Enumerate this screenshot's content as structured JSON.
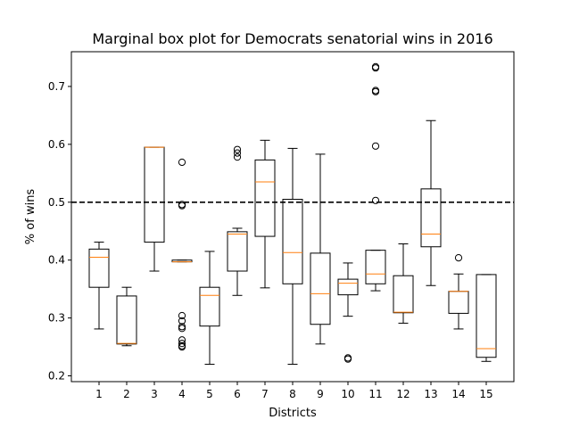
{
  "chart_data": {
    "type": "box",
    "title": "Marginal box plot for Democrats senatorial wins in 2016",
    "xlabel": "Districts",
    "ylabel": "% of wins",
    "ylim": [
      0.19,
      0.76
    ],
    "yticks": [
      0.2,
      0.3,
      0.4,
      0.5,
      0.6,
      0.7
    ],
    "ytick_labels": [
      "0.2",
      "0.3",
      "0.4",
      "0.5",
      "0.6",
      "0.7"
    ],
    "categories": [
      "1",
      "2",
      "3",
      "4",
      "5",
      "6",
      "7",
      "8",
      "9",
      "10",
      "11",
      "12",
      "13",
      "14",
      "15"
    ],
    "reference_line": {
      "y": 0.5,
      "style": "dashed",
      "color": "#000000"
    },
    "colors": {
      "box": "#000000",
      "median": "#ff7f0e",
      "flier": "#000000"
    },
    "boxes": [
      {
        "district": "1",
        "whislo": 0.281,
        "q1": 0.353,
        "med": 0.405,
        "q3": 0.419,
        "whishi": 0.431,
        "fliers": []
      },
      {
        "district": "2",
        "whislo": 0.252,
        "q1": 0.255,
        "med": 0.256,
        "q3": 0.338,
        "whishi": 0.353,
        "fliers": []
      },
      {
        "district": "3",
        "whislo": 0.381,
        "q1": 0.431,
        "med": 0.595,
        "q3": 0.595,
        "whishi": 0.595,
        "fliers": []
      },
      {
        "district": "4",
        "whislo": 0.397,
        "q1": 0.397,
        "med": 0.397,
        "q3": 0.4,
        "whishi": 0.4,
        "fliers": [
          0.569,
          0.496,
          0.494,
          0.304,
          0.295,
          0.285,
          0.282,
          0.262,
          0.256,
          0.252,
          0.25
        ]
      },
      {
        "district": "5",
        "whislo": 0.22,
        "q1": 0.286,
        "med": 0.339,
        "q3": 0.353,
        "whishi": 0.415,
        "fliers": []
      },
      {
        "district": "6",
        "whislo": 0.339,
        "q1": 0.381,
        "med": 0.445,
        "q3": 0.449,
        "whishi": 0.455,
        "fliers": [
          0.591,
          0.585,
          0.578
        ]
      },
      {
        "district": "7",
        "whislo": 0.352,
        "q1": 0.441,
        "med": 0.535,
        "q3": 0.573,
        "whishi": 0.607,
        "fliers": []
      },
      {
        "district": "8",
        "whislo": 0.22,
        "q1": 0.359,
        "med": 0.413,
        "q3": 0.505,
        "whishi": 0.593,
        "fliers": []
      },
      {
        "district": "9",
        "whislo": 0.255,
        "q1": 0.289,
        "med": 0.342,
        "q3": 0.412,
        "whishi": 0.583,
        "fliers": []
      },
      {
        "district": "10",
        "whislo": 0.303,
        "q1": 0.34,
        "med": 0.36,
        "q3": 0.367,
        "whishi": 0.395,
        "fliers": [
          0.231,
          0.229
        ]
      },
      {
        "district": "11",
        "whislo": 0.347,
        "q1": 0.359,
        "med": 0.376,
        "q3": 0.417,
        "whishi": 0.417,
        "fliers": [
          0.734,
          0.732,
          0.693,
          0.691,
          0.597,
          0.503
        ]
      },
      {
        "district": "12",
        "whislo": 0.291,
        "q1": 0.309,
        "med": 0.31,
        "q3": 0.373,
        "whishi": 0.428,
        "fliers": []
      },
      {
        "district": "13",
        "whislo": 0.356,
        "q1": 0.423,
        "med": 0.445,
        "q3": 0.523,
        "whishi": 0.641,
        "fliers": []
      },
      {
        "district": "14",
        "whislo": 0.281,
        "q1": 0.308,
        "med": 0.346,
        "q3": 0.346,
        "whishi": 0.376,
        "fliers": [
          0.404
        ]
      },
      {
        "district": "15",
        "whislo": 0.225,
        "q1": 0.232,
        "med": 0.247,
        "q3": 0.375,
        "whishi": 0.375,
        "fliers": []
      }
    ]
  }
}
